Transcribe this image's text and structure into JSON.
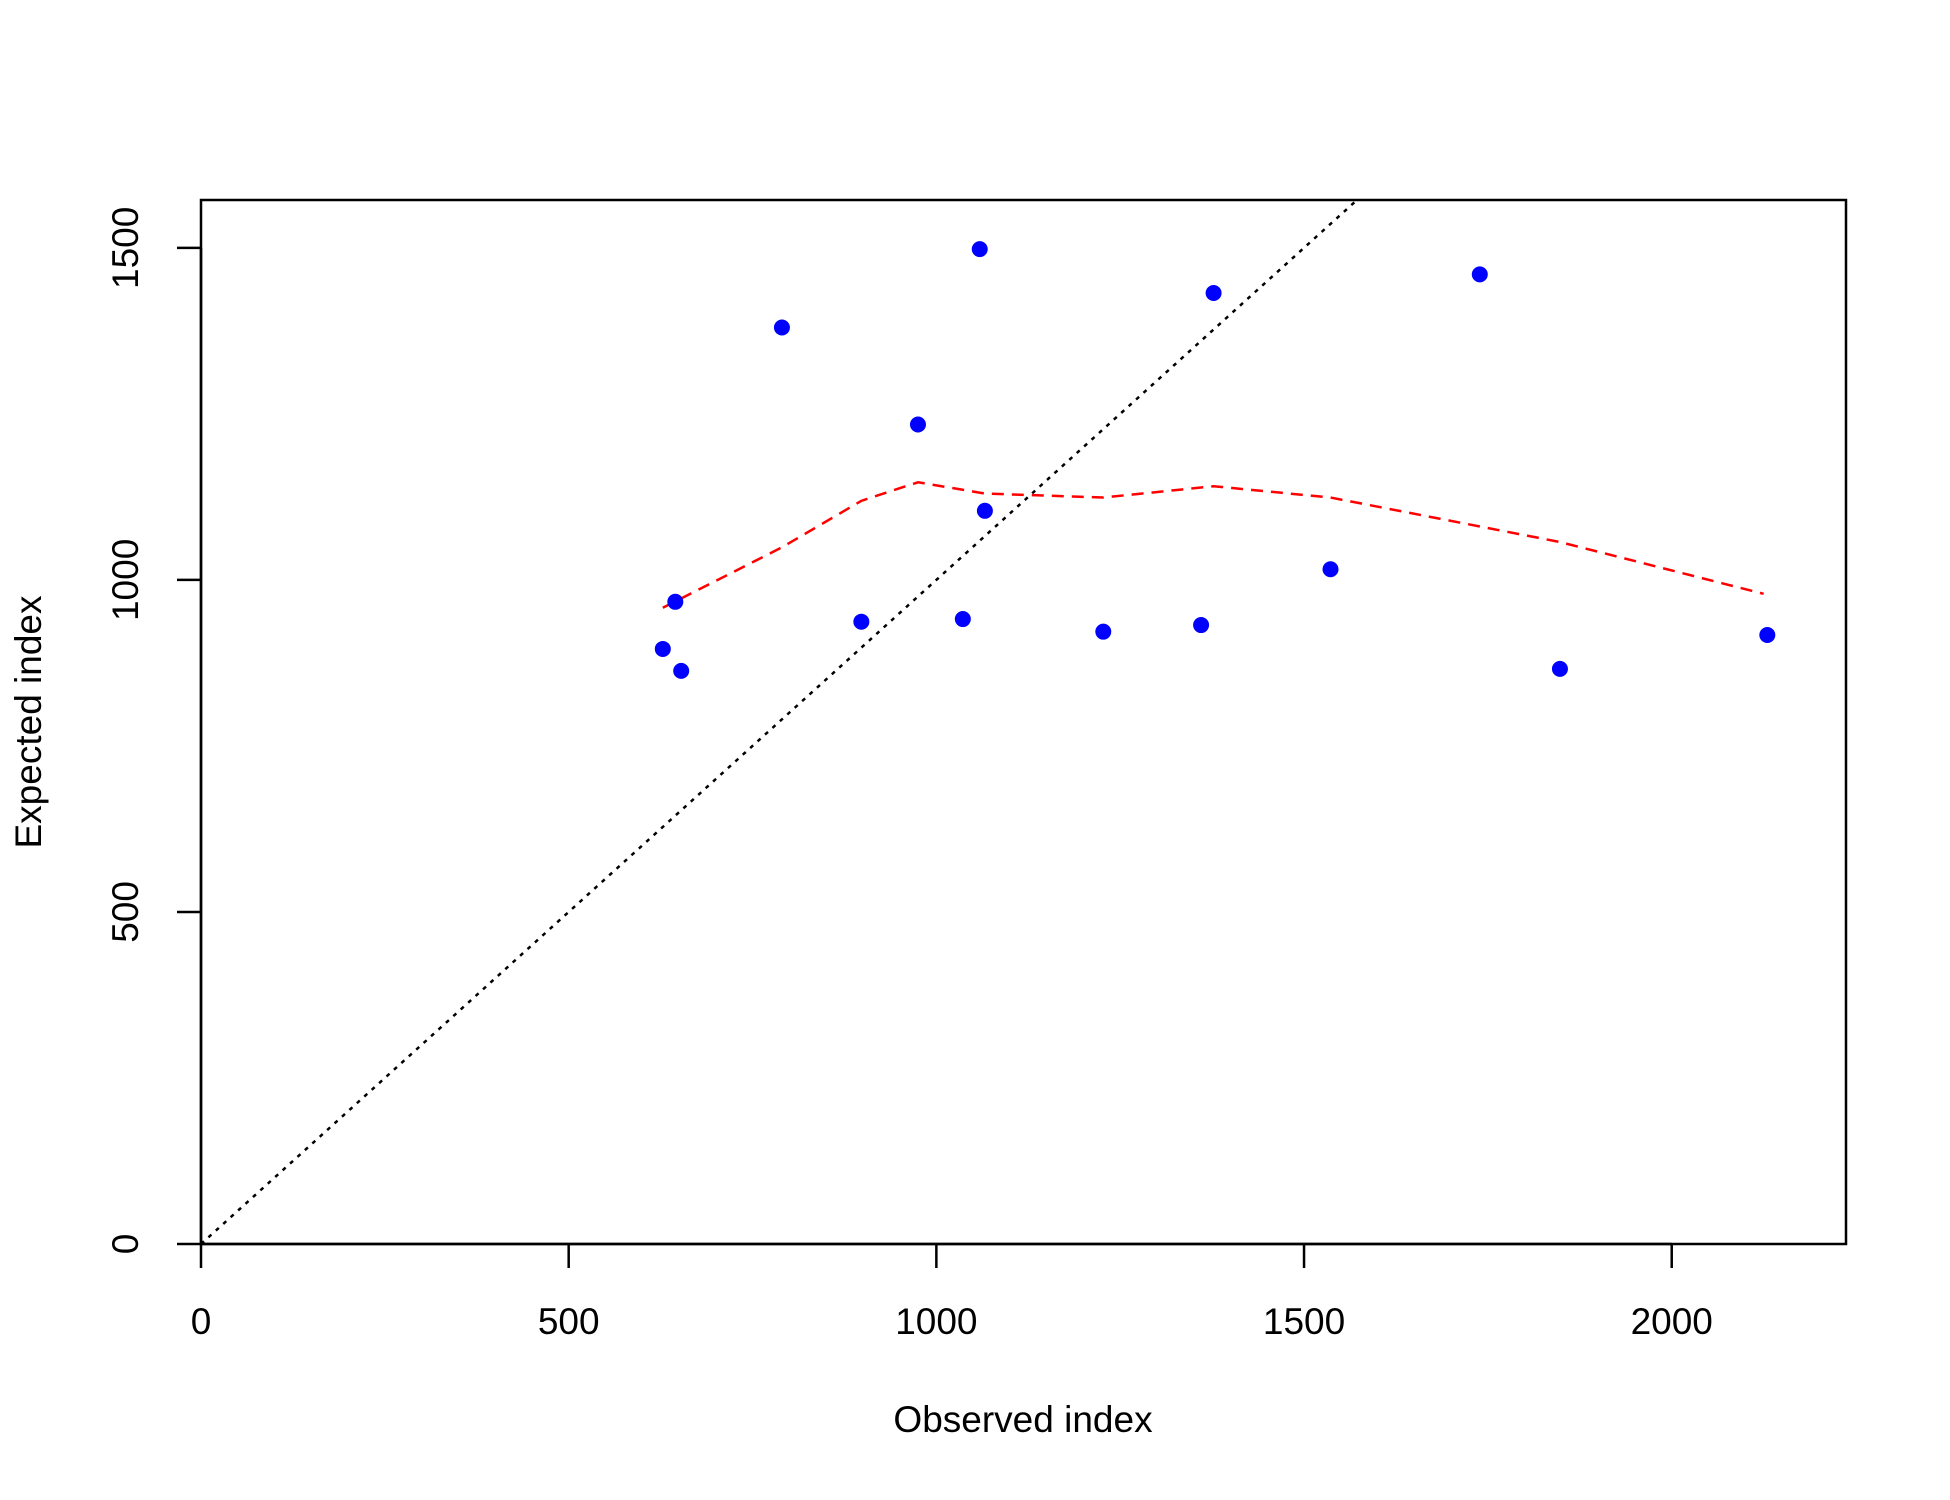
{
  "chart_data": {
    "type": "scatter",
    "x_label": "Observed index",
    "y_label": "Expected index",
    "xlim": [
      0,
      2237
    ],
    "ylim": [
      0,
      1572
    ],
    "xticks": [
      0,
      500,
      1000,
      1500,
      2000
    ],
    "yticks": [
      0,
      500,
      1000,
      1500
    ],
    "points": {
      "color": "#0000ff",
      "x": [
        628,
        645,
        653,
        790,
        898,
        975,
        1036,
        1059,
        1066,
        1227,
        1360,
        1377,
        1536,
        1739,
        1848,
        2130
      ],
      "y": [
        896,
        967,
        863,
        1380,
        937,
        1234,
        941,
        1498,
        1104,
        922,
        932,
        1432,
        1016,
        1460,
        866,
        917
      ]
    },
    "fit_line": {
      "color": "#ff0000",
      "dash": "dashed",
      "x": [
        628,
        790,
        898,
        975,
        1066,
        1227,
        1377,
        1536,
        1848,
        2125
      ],
      "y": [
        958,
        1049,
        1119,
        1147,
        1130,
        1124,
        1141,
        1124,
        1057,
        979
      ]
    },
    "reference_line": {
      "intercept": 0,
      "slope": 1,
      "color": "#000000",
      "dash": "dotted"
    }
  }
}
